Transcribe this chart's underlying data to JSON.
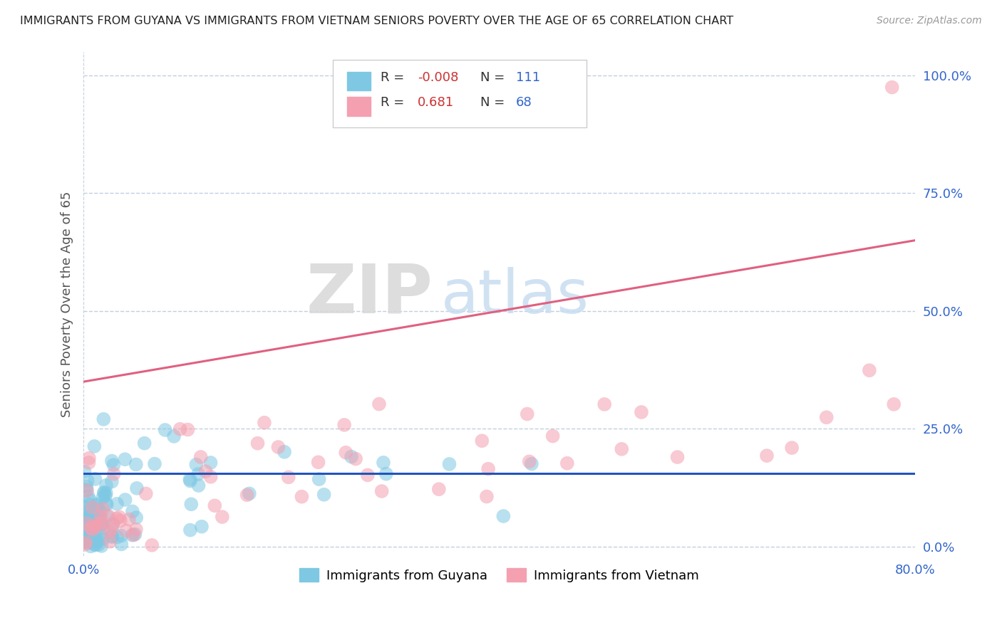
{
  "title": "IMMIGRANTS FROM GUYANA VS IMMIGRANTS FROM VIETNAM SENIORS POVERTY OVER THE AGE OF 65 CORRELATION CHART",
  "source": "Source: ZipAtlas.com",
  "ylabel": "Seniors Poverty Over the Age of 65",
  "xlim": [
    0.0,
    0.8
  ],
  "ylim": [
    -0.02,
    1.05
  ],
  "yticks": [
    0.0,
    0.25,
    0.5,
    0.75,
    1.0
  ],
  "ytick_labels": [
    "0.0%",
    "25.0%",
    "50.0%",
    "75.0%",
    "100.0%"
  ],
  "xticks": [
    0.0,
    0.8
  ],
  "xtick_labels": [
    "0.0%",
    "80.0%"
  ],
  "guyana_R": "-0.008",
  "guyana_N": "111",
  "vietnam_R": "0.681",
  "vietnam_N": "68",
  "guyana_color": "#7ec8e3",
  "vietnam_color": "#f4a0b0",
  "guyana_line_color": "#2255bb",
  "vietnam_line_color": "#e06080",
  "watermark_ZIP": "ZIP",
  "watermark_atlas": "atlas",
  "background_color": "#ffffff",
  "grid_color": "#c0d0e0",
  "legend_label_guyana": "Immigrants from Guyana",
  "legend_label_vietnam": "Immigrants from Vietnam",
  "r_label_color": "#cc3333",
  "n_label_color": "#3366cc",
  "tick_color": "#3366cc",
  "vietnam_line_start_y": 0.35,
  "vietnam_line_end_y": 0.65,
  "guyana_line_y": 0.155
}
